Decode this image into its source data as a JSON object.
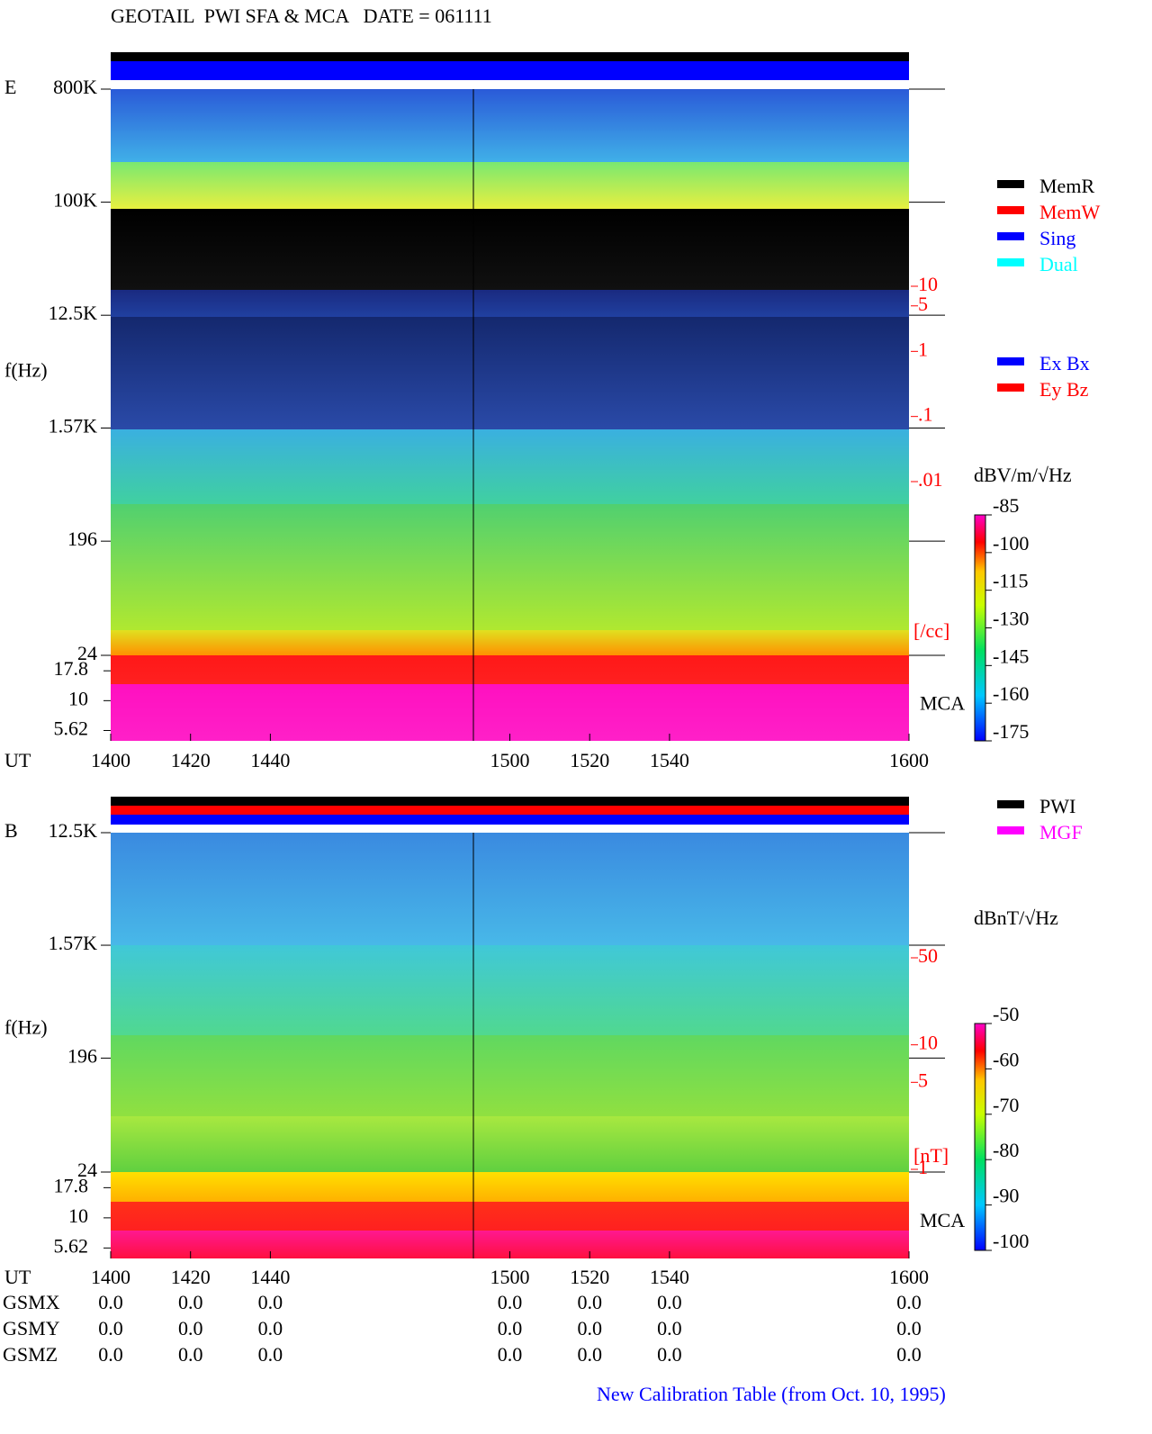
{
  "title": "GEOTAIL  PWI SFA & MCA   DATE = 061111",
  "chart_data": [
    {
      "type": "spectrogram",
      "panel_label": "E",
      "ylabel": "f(Hz)",
      "xlabel": "UT",
      "log_y": true,
      "xlim": [
        1400,
        1600
      ],
      "xticks": [
        1400,
        1420,
        1440,
        1500,
        1520,
        1540,
        1600
      ],
      "ylim": [
        24,
        800000
      ],
      "yticks": [
        {
          "value": 800000,
          "label": "800K"
        },
        {
          "value": 100000,
          "label": "100K"
        },
        {
          "value": 12500,
          "label": "12.5K"
        },
        {
          "value": 1570,
          "label": "1.57K"
        },
        196,
        24
      ],
      "mca_label": "MCA",
      "mca_ylim": [
        4.6,
        24
      ],
      "mca_yticks": [
        17.8,
        10,
        5.62
      ],
      "colorbar": {
        "label": "dBV/m/√Hz",
        "lim": [
          -175,
          -85
        ],
        "ticks": [
          -85,
          -100,
          -115,
          -130,
          -145,
          -160,
          -175
        ]
      },
      "right_axis": {
        "label": "[/cc]",
        "color": "#ff0000",
        "lim": [
          0.01,
          10
        ],
        "ticks": [
          10,
          5,
          1,
          {
            "value": 0.1,
            "label": ".1"
          },
          {
            "value": 0.01,
            "label": ".01"
          }
        ]
      },
      "legend": [
        [
          {
            "name": "MemR",
            "color": "#000000"
          },
          {
            "name": "MemW",
            "color": "#ff0000"
          },
          {
            "name": "Sing",
            "color": "#0000ff"
          },
          {
            "name": "Dual",
            "color": "#00ffff"
          }
        ],
        [
          {
            "name": "Ex Bx",
            "color": "#0000ff"
          },
          {
            "name": "Ey Bz",
            "color": "#ff0000"
          }
        ]
      ]
    },
    {
      "type": "spectrogram",
      "panel_label": "B",
      "ylabel": "f(Hz)",
      "xlabel": "UT",
      "log_y": true,
      "xlim": [
        1400,
        1600
      ],
      "xticks": [
        1400,
        1420,
        1440,
        1500,
        1520,
        1540,
        1600
      ],
      "ylim": [
        24,
        12500
      ],
      "yticks": [
        {
          "value": 12500,
          "label": "12.5K"
        },
        {
          "value": 1570,
          "label": "1.57K"
        },
        196,
        24
      ],
      "mca_label": "MCA",
      "mca_ylim": [
        4.6,
        24
      ],
      "mca_yticks": [
        17.8,
        10,
        5.62
      ],
      "colorbar": {
        "label": "dBnT/√Hz",
        "lim": [
          -100,
          -50
        ],
        "ticks": [
          -50,
          -60,
          -70,
          -80,
          -90,
          -100
        ]
      },
      "right_axis": {
        "label": "[nT]",
        "color": "#ff0000",
        "lim": [
          1,
          50
        ],
        "ticks": [
          50,
          10,
          5,
          1
        ]
      },
      "legend": [
        [
          {
            "name": "PWI",
            "color": "#000000"
          },
          {
            "name": "MGF",
            "color": "#ff00ff"
          }
        ]
      ]
    }
  ],
  "orbit": [
    {
      "name": "GSMX",
      "values": [
        0,
        0,
        0,
        0,
        0,
        0,
        0
      ],
      "value_labels": [
        "0.0",
        "0.0",
        "0.0",
        "0.0",
        "0.0",
        "0.0",
        "0.0"
      ]
    },
    {
      "name": "GSMY",
      "values": [
        0,
        0,
        0,
        0,
        0,
        0,
        0
      ],
      "value_labels": [
        "0.0",
        "0.0",
        "0.0",
        "0.0",
        "0.0",
        "0.0",
        "0.0"
      ]
    },
    {
      "name": "GSMZ",
      "values": [
        0,
        0,
        0,
        0,
        0,
        0,
        0
      ],
      "value_labels": [
        "0.0",
        "0.0",
        "0.0",
        "0.0",
        "0.0",
        "0.0",
        "0.0"
      ]
    }
  ],
  "footnote": "New Calibration Table (from Oct. 10, 1995)"
}
